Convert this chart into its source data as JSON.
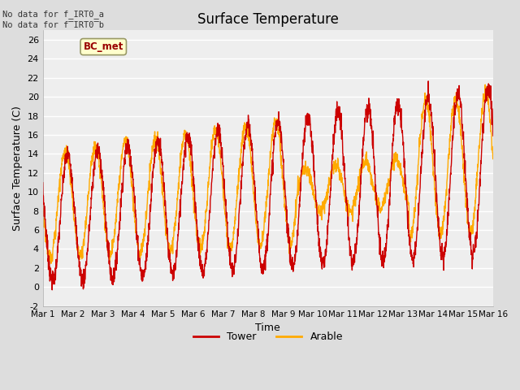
{
  "title": "Surface Temperature",
  "xlabel": "Time",
  "ylabel": "Surface Temperature (C)",
  "ylim": [
    -2,
    27
  ],
  "yticks": [
    -2,
    0,
    2,
    4,
    6,
    8,
    10,
    12,
    14,
    16,
    18,
    20,
    22,
    24,
    26
  ],
  "xtick_labels": [
    "Mar 1",
    "Mar 2",
    "Mar 3",
    "Mar 4",
    "Mar 5",
    "Mar 6",
    "Mar 7",
    "Mar 8",
    "Mar 9",
    "Mar 10",
    "Mar 11",
    "Mar 12",
    "Mar 13",
    "Mar 14",
    "Mar 15",
    "Mar 16"
  ],
  "tower_color": "#cc0000",
  "arable_color": "#ffaa00",
  "fig_bg_color": "#dddddd",
  "plot_bg_color": "#eeeeee",
  "grid_color": "#ffffff",
  "bc_met_text": "BC_met",
  "bc_met_bg": "#ffffcc",
  "bc_met_border": "#999966",
  "bc_met_text_color": "#990000",
  "nodata_text1": "No data for f_IRT0_a",
  "nodata_text2": "No data for f̅IRT0̅b",
  "legend_tower": "Tower",
  "legend_arable": "Arable",
  "n_days": 15,
  "n_per_day": 144
}
